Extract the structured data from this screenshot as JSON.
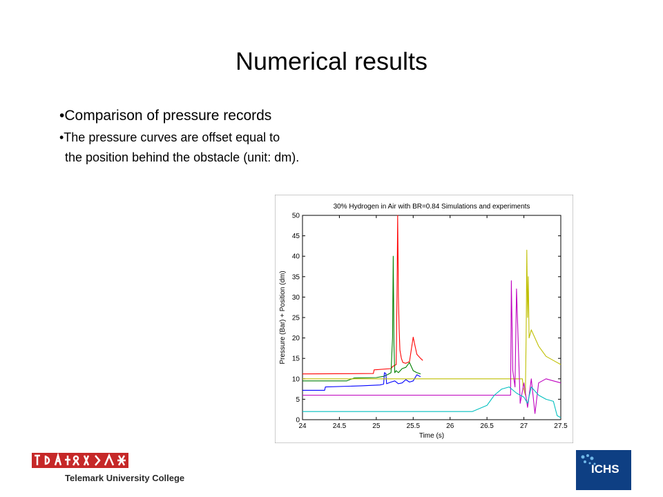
{
  "slide": {
    "title": "Numerical results",
    "bullets": [
      "•Comparison of pressure records",
      "•The pressure curves are offset equal to",
      " the position behind the obstacle (unit: dm)."
    ]
  },
  "logos": {
    "left_text": "Telemark University College",
    "right_text": "ICHS"
  },
  "chart_data": {
    "type": "line",
    "title": "30% Hydrogen in Air with BR=0.84    Simulations and experiments",
    "xlabel": "Time (s)",
    "ylabel": "Pressure (Bar) + Position (dm)",
    "xlim": [
      24,
      27.5
    ],
    "ylim": [
      0,
      50
    ],
    "xticks": [
      24,
      24.5,
      25,
      25.5,
      26,
      26.5,
      27,
      27.5
    ],
    "yticks": [
      0,
      5,
      10,
      15,
      20,
      25,
      30,
      35,
      40,
      45,
      50
    ],
    "grid": false,
    "legend": "none",
    "series": [
      {
        "color": "#ff0000",
        "x": [
          24.0,
          24.96,
          24.97,
          25.2,
          25.22,
          25.27,
          25.28,
          25.29,
          25.3,
          25.31,
          25.32,
          25.34,
          25.36,
          25.4,
          25.45,
          25.5,
          25.52,
          25.55,
          25.6,
          25.63
        ],
        "y": [
          11.2,
          11.3,
          12.2,
          12.5,
          13.0,
          13.5,
          30.0,
          50.0,
          30.0,
          22.0,
          17.0,
          15.0,
          14.0,
          13.8,
          14.2,
          20.2,
          18.5,
          16.0,
          15.0,
          14.5
        ]
      },
      {
        "color": "#008000",
        "x": [
          24.0,
          24.6,
          24.7,
          25.0,
          25.1,
          25.15,
          25.2,
          25.22,
          25.23,
          25.24,
          25.25,
          25.27,
          25.3,
          25.35,
          25.4,
          25.45,
          25.5,
          25.55,
          25.6
        ],
        "y": [
          9.5,
          9.5,
          10.2,
          10.3,
          10.6,
          11.0,
          11.5,
          20.0,
          40.0,
          18.0,
          11.5,
          12.0,
          11.5,
          12.5,
          12.8,
          14.0,
          12.0,
          11.5,
          11.2
        ]
      },
      {
        "color": "#0000ff",
        "x": [
          24.0,
          24.3,
          24.31,
          24.8,
          25.05,
          25.1,
          25.11,
          25.13,
          25.14,
          25.2,
          25.25,
          25.3,
          25.35,
          25.4,
          25.45,
          25.5,
          25.55,
          25.6
        ],
        "y": [
          7.2,
          7.2,
          8.0,
          8.3,
          8.5,
          8.7,
          11.5,
          11.3,
          8.8,
          9.2,
          9.5,
          8.8,
          9.0,
          9.8,
          9.2,
          9.5,
          11.0,
          10.5
        ]
      },
      {
        "color": "#bfbf00",
        "x": [
          24.0,
          26.98,
          26.99,
          27.02,
          27.03,
          27.04,
          27.05,
          27.06,
          27.07,
          27.1,
          27.15,
          27.2,
          27.3,
          27.4,
          27.5
        ],
        "y": [
          10.0,
          10.0,
          8.0,
          6.0,
          20.0,
          41.5,
          25.0,
          35.0,
          20.0,
          22.0,
          20.0,
          18.0,
          15.5,
          14.5,
          13.5
        ]
      },
      {
        "color": "#bf00bf",
        "x": [
          24.0,
          26.82,
          26.83,
          26.85,
          26.88,
          26.9,
          26.95,
          27.0,
          27.05,
          27.1,
          27.15,
          27.2,
          27.3,
          27.4,
          27.5
        ],
        "y": [
          6.0,
          6.0,
          34.0,
          12.0,
          8.0,
          32.0,
          4.0,
          9.0,
          3.0,
          10.0,
          1.5,
          9.0,
          10.0,
          9.5,
          9.0
        ]
      },
      {
        "color": "#00bfbf",
        "x": [
          24.0,
          26.3,
          26.5,
          26.6,
          26.7,
          26.8,
          26.9,
          27.0,
          27.05,
          27.1,
          27.2,
          27.3,
          27.4,
          27.45,
          27.5
        ],
        "y": [
          2.0,
          2.0,
          3.5,
          6.0,
          7.5,
          8.0,
          6.5,
          5.5,
          4.0,
          8.0,
          6.0,
          5.0,
          4.5,
          1.0,
          0.5
        ]
      }
    ]
  }
}
